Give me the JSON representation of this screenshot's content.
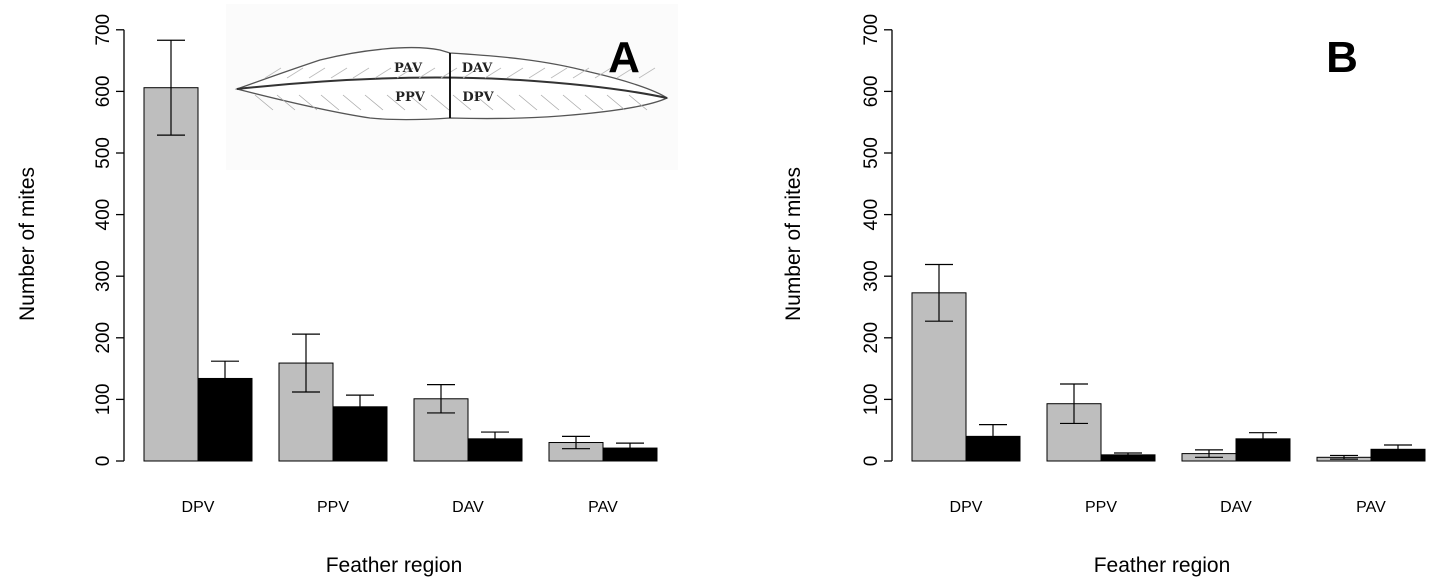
{
  "chart_data": [
    {
      "type": "bar",
      "panel_label": "A",
      "categories": [
        "DPV",
        "PPV",
        "DAV",
        "PAV"
      ],
      "series": [
        {
          "color": "#bebebe",
          "values": [
            606,
            159,
            101,
            30
          ],
          "error": [
            77,
            47,
            23,
            10
          ]
        },
        {
          "color": "#000000",
          "values": [
            134,
            88,
            36,
            21
          ],
          "error": [
            28,
            19,
            11,
            8
          ]
        }
      ],
      "xlabel": "Feather region",
      "ylabel": "Number of mites",
      "ylim": [
        0,
        700
      ],
      "yticks": [
        "0",
        "100",
        "200",
        "300",
        "400",
        "500",
        "600",
        "700"
      ],
      "grid": false,
      "inset": {
        "labels": [
          "PAV",
          "DAV",
          "PPV",
          "DPV"
        ]
      }
    },
    {
      "type": "bar",
      "panel_label": "B",
      "categories": [
        "DPV",
        "PPV",
        "DAV",
        "PAV"
      ],
      "series": [
        {
          "color": "#bebebe",
          "values": [
            273,
            93,
            12,
            6
          ],
          "error": [
            46,
            32,
            6,
            3
          ]
        },
        {
          "color": "#000000",
          "values": [
            40,
            10,
            36,
            19
          ],
          "error": [
            19,
            3,
            10,
            7
          ]
        }
      ],
      "xlabel": "Feather region",
      "ylabel": "Number of mites",
      "ylim": [
        0,
        700
      ],
      "yticks": [
        "0",
        "100",
        "200",
        "300",
        "400",
        "500",
        "600",
        "700"
      ],
      "grid": false
    }
  ]
}
